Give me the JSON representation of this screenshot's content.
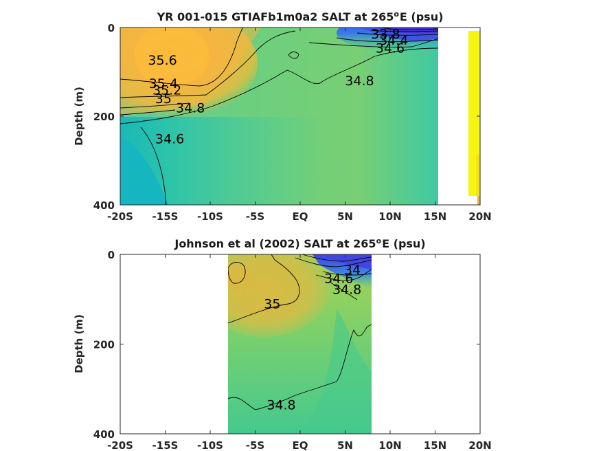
{
  "chart_data": [
    {
      "type": "heatmap",
      "title": "YR 001-015 GTIAFb1m0a2 SALT at 265",
      "title_sup": "o",
      "title_tail": "E (psu)",
      "ylabel": "Depth (m)",
      "x_ticks": [
        "-20S",
        "-15S",
        "-10S",
        "-5S",
        "EQ",
        "5N",
        "10N",
        "15N",
        "20N"
      ],
      "x_tick_values": [
        -20,
        -15,
        -10,
        -5,
        0,
        5,
        10,
        15,
        20
      ],
      "y_ticks": [
        "0",
        "200",
        "400"
      ],
      "y_tick_values": [
        0,
        200,
        400
      ],
      "xlim": [
        -20,
        20
      ],
      "ylim": [
        0,
        400
      ],
      "data_extent_x": [
        -20,
        15.5
      ],
      "contour_labels": [
        {
          "text": "35.6",
          "x": -15.3,
          "y": 75
        },
        {
          "text": "35.4",
          "x": -15.2,
          "y": 128
        },
        {
          "text": "35.2",
          "x": -14.8,
          "y": 143
        },
        {
          "text": "35",
          "x": -15.2,
          "y": 162
        },
        {
          "text": "34.8",
          "x": -12.2,
          "y": 183
        },
        {
          "text": "34.8",
          "x": 6.6,
          "y": 122
        },
        {
          "text": "34.6",
          "x": -14.5,
          "y": 253
        },
        {
          "text": "34.6",
          "x": 10,
          "y": 48
        },
        {
          "text": "34.4",
          "x": 10.4,
          "y": 30
        },
        {
          "text": "33.8",
          "x": 9.5,
          "y": 16
        }
      ]
    },
    {
      "type": "heatmap",
      "title": "Johnson et al (2002) SALT at 265",
      "title_sup": "o",
      "title_tail": "E (psu)",
      "ylabel": "Depth (m)",
      "x_ticks": [
        "-20S",
        "-15S",
        "-10S",
        "-5S",
        "EQ",
        "5N",
        "10N",
        "15N",
        "20N"
      ],
      "x_tick_values": [
        -20,
        -15,
        -10,
        -5,
        0,
        5,
        10,
        15,
        20
      ],
      "y_ticks": [
        "0",
        "200",
        "400"
      ],
      "y_tick_values": [
        0,
        200,
        400
      ],
      "xlim": [
        -20,
        20
      ],
      "ylim": [
        0,
        400
      ],
      "data_extent_x": [
        -8,
        8
      ],
      "contour_labels": [
        {
          "text": "35",
          "x": -3.1,
          "y": 112
        },
        {
          "text": "34.8",
          "x": 5.2,
          "y": 80
        },
        {
          "text": "34.6",
          "x": 4.3,
          "y": 55
        },
        {
          "text": "34",
          "x": 5.8,
          "y": 36
        },
        {
          "text": "34.8",
          "x": -2.1,
          "y": 337
        }
      ]
    }
  ]
}
